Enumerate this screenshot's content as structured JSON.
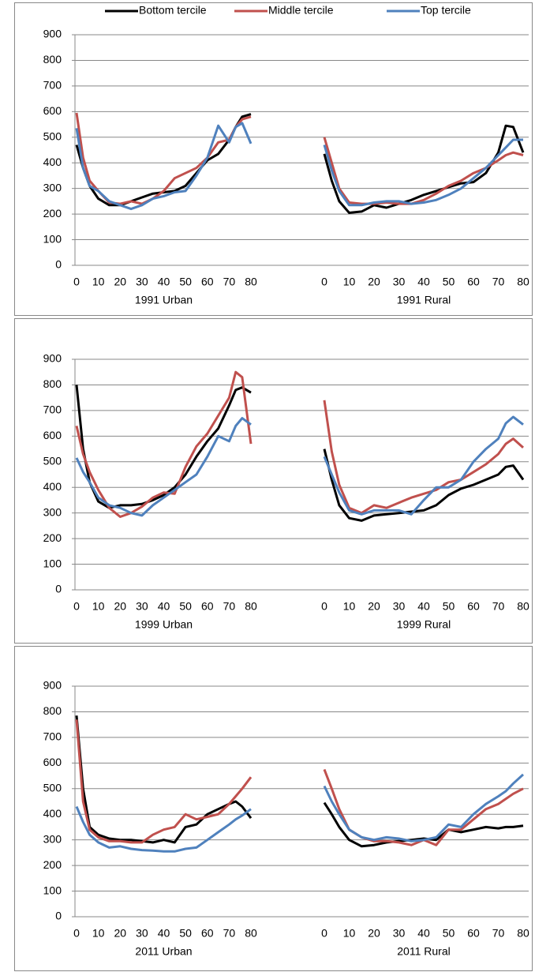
{
  "chart_data": [
    {
      "type": "line",
      "xlabel": "1991 Urban",
      "x": [
        0,
        3,
        6,
        10,
        15,
        20,
        25,
        30,
        35,
        40,
        45,
        50,
        55,
        60,
        65,
        70,
        73,
        76,
        80
      ],
      "xlim": [
        0,
        80
      ],
      "xticks": [
        0,
        10,
        20,
        30,
        40,
        50,
        60,
        70,
        80
      ],
      "ylim": [
        0,
        900
      ],
      "yticks": [
        0,
        100,
        200,
        300,
        400,
        500,
        600,
        700,
        800,
        900
      ],
      "grid": true,
      "series": [
        {
          "name": "Bottom tercile",
          "color": "#000000",
          "values": [
            470,
            380,
            310,
            260,
            235,
            235,
            250,
            265,
            280,
            285,
            290,
            310,
            360,
            410,
            435,
            490,
            540,
            580,
            590
          ]
        },
        {
          "name": "Middle tercile",
          "color": "#c0504d",
          "values": [
            595,
            420,
            330,
            290,
            245,
            240,
            250,
            240,
            260,
            290,
            340,
            360,
            380,
            420,
            480,
            490,
            540,
            570,
            580
          ]
        },
        {
          "name": "Top tercile",
          "color": "#4f81bd",
          "values": [
            535,
            380,
            310,
            290,
            250,
            235,
            220,
            235,
            260,
            270,
            285,
            290,
            350,
            420,
            545,
            480,
            540,
            555,
            475
          ]
        }
      ]
    },
    {
      "type": "line",
      "xlabel": "1991 Rural",
      "x": [
        0,
        3,
        6,
        10,
        15,
        20,
        25,
        30,
        35,
        40,
        45,
        50,
        55,
        60,
        65,
        70,
        73,
        76,
        80
      ],
      "xlim": [
        0,
        80
      ],
      "xticks": [
        0,
        10,
        20,
        30,
        40,
        50,
        60,
        70,
        80
      ],
      "ylim": [
        0,
        900
      ],
      "series": [
        {
          "color": "#000000",
          "values": [
            435,
            330,
            250,
            205,
            210,
            235,
            225,
            240,
            255,
            275,
            290,
            305,
            320,
            325,
            360,
            440,
            545,
            540,
            440
          ]
        },
        {
          "color": "#c0504d",
          "values": [
            500,
            400,
            300,
            245,
            240,
            240,
            245,
            240,
            240,
            255,
            280,
            310,
            330,
            360,
            380,
            410,
            430,
            440,
            430
          ]
        },
        {
          "color": "#4f81bd",
          "values": [
            470,
            370,
            290,
            235,
            235,
            245,
            250,
            250,
            240,
            245,
            255,
            275,
            300,
            340,
            380,
            430,
            460,
            490,
            490
          ]
        }
      ]
    },
    {
      "type": "line",
      "xlabel": "1999 Urban",
      "x": [
        0,
        3,
        6,
        10,
        15,
        20,
        25,
        30,
        35,
        40,
        45,
        50,
        55,
        60,
        65,
        70,
        73,
        76,
        80
      ],
      "xlim": [
        0,
        80
      ],
      "xticks": [
        0,
        10,
        20,
        30,
        40,
        50,
        60,
        70,
        80
      ],
      "ylim": [
        0,
        900
      ],
      "yticks": [
        0,
        100,
        200,
        300,
        400,
        500,
        600,
        700,
        800,
        900
      ],
      "grid": true,
      "series": [
        {
          "color": "#000000",
          "values": [
            800,
            550,
            420,
            345,
            320,
            330,
            330,
            335,
            350,
            370,
            400,
            450,
            520,
            580,
            630,
            720,
            780,
            790,
            770
          ]
        },
        {
          "color": "#c0504d",
          "values": [
            640,
            530,
            460,
            390,
            320,
            285,
            300,
            325,
            360,
            380,
            375,
            480,
            560,
            610,
            680,
            750,
            850,
            830,
            570
          ]
        },
        {
          "color": "#4f81bd",
          "values": [
            515,
            460,
            420,
            360,
            330,
            320,
            300,
            290,
            330,
            360,
            390,
            420,
            450,
            520,
            600,
            580,
            640,
            670,
            645
          ]
        }
      ]
    },
    {
      "type": "line",
      "xlabel": "1999 Rural",
      "x": [
        0,
        3,
        6,
        10,
        15,
        20,
        25,
        30,
        35,
        40,
        45,
        50,
        55,
        60,
        65,
        70,
        73,
        76,
        80
      ],
      "xlim": [
        0,
        80
      ],
      "xticks": [
        0,
        10,
        20,
        30,
        40,
        50,
        60,
        70,
        80
      ],
      "ylim": [
        0,
        900
      ],
      "series": [
        {
          "color": "#000000",
          "values": [
            550,
            430,
            330,
            280,
            270,
            290,
            295,
            300,
            305,
            310,
            330,
            370,
            395,
            410,
            430,
            450,
            480,
            485,
            430
          ]
        },
        {
          "color": "#c0504d",
          "values": [
            740,
            540,
            410,
            320,
            300,
            330,
            320,
            340,
            360,
            375,
            390,
            420,
            430,
            460,
            490,
            530,
            570,
            590,
            555
          ]
        },
        {
          "color": "#4f81bd",
          "values": [
            520,
            450,
            380,
            310,
            295,
            310,
            310,
            310,
            295,
            350,
            400,
            400,
            430,
            500,
            550,
            590,
            650,
            675,
            645
          ]
        }
      ]
    },
    {
      "type": "line",
      "xlabel": "2011 Urban",
      "x": [
        0,
        3,
        6,
        10,
        15,
        20,
        25,
        30,
        35,
        40,
        45,
        50,
        55,
        60,
        65,
        70,
        73,
        76,
        80
      ],
      "xlim": [
        0,
        80
      ],
      "xticks": [
        0,
        10,
        20,
        30,
        40,
        50,
        60,
        70,
        80
      ],
      "ylim": [
        0,
        900
      ],
      "yticks": [
        0,
        100,
        200,
        300,
        400,
        500,
        600,
        700,
        800,
        900
      ],
      "grid": true,
      "series": [
        {
          "color": "#000000",
          "values": [
            785,
            500,
            350,
            320,
            305,
            300,
            300,
            295,
            290,
            300,
            290,
            350,
            360,
            400,
            420,
            440,
            450,
            430,
            385
          ]
        },
        {
          "color": "#c0504d",
          "values": [
            770,
            450,
            340,
            310,
            295,
            295,
            290,
            290,
            320,
            340,
            350,
            400,
            380,
            390,
            400,
            440,
            470,
            500,
            545
          ]
        },
        {
          "color": "#4f81bd",
          "values": [
            430,
            370,
            320,
            290,
            270,
            275,
            265,
            260,
            258,
            255,
            255,
            265,
            270,
            300,
            330,
            360,
            380,
            395,
            420
          ]
        }
      ]
    },
    {
      "type": "line",
      "xlabel": "2011 Rural",
      "x": [
        0,
        3,
        6,
        10,
        15,
        20,
        25,
        30,
        35,
        40,
        45,
        50,
        55,
        60,
        65,
        70,
        73,
        76,
        80
      ],
      "xlim": [
        0,
        80
      ],
      "xticks": [
        0,
        10,
        20,
        30,
        40,
        50,
        60,
        70,
        80
      ],
      "ylim": [
        0,
        900
      ],
      "series": [
        {
          "color": "#000000",
          "values": [
            445,
            400,
            350,
            300,
            275,
            280,
            290,
            295,
            300,
            305,
            300,
            340,
            330,
            340,
            350,
            345,
            350,
            350,
            355
          ]
        },
        {
          "color": "#c0504d",
          "values": [
            575,
            500,
            420,
            340,
            310,
            295,
            295,
            290,
            280,
            300,
            280,
            340,
            340,
            380,
            420,
            440,
            460,
            480,
            500
          ]
        },
        {
          "color": "#4f81bd",
          "values": [
            510,
            450,
            400,
            340,
            310,
            300,
            310,
            305,
            295,
            300,
            310,
            360,
            350,
            400,
            440,
            470,
            490,
            520,
            555
          ]
        }
      ]
    }
  ]
}
